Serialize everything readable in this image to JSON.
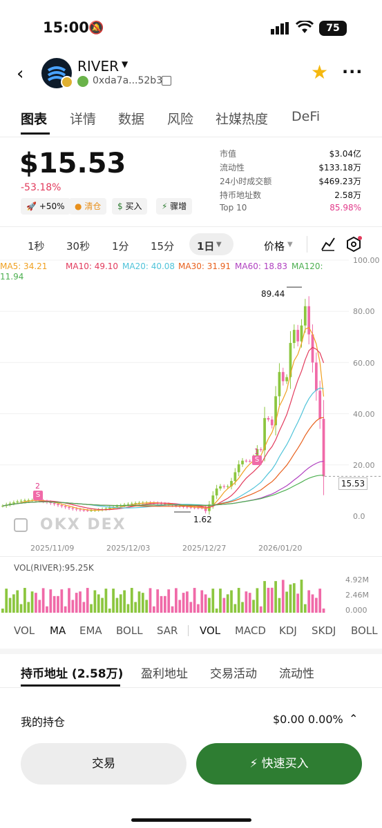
{
  "status": {
    "time": "15:00",
    "battery": "75"
  },
  "header": {
    "name": "RIVER",
    "address": "0xda7a...52b3"
  },
  "tabs": [
    "图表",
    "详情",
    "数据",
    "风险",
    "社媒热度",
    "DeFi"
  ],
  "price": {
    "value": "$15.53",
    "change": "-53.18%"
  },
  "chips": [
    "+50%",
    "清仓",
    "买入",
    "骤增"
  ],
  "stats": [
    {
      "label": "市值",
      "value": "$3.04亿"
    },
    {
      "label": "流动性",
      "value": "$133.18万"
    },
    {
      "label": "24小时成交额",
      "value": "$469.23万"
    },
    {
      "label": "持币地址数",
      "value": "2.58万"
    },
    {
      "label": "Top 10",
      "value": "85.98%"
    }
  ],
  "timeframes": [
    "1秒",
    "30秒",
    "1分",
    "15分",
    "1日"
  ],
  "price_selector": "价格",
  "ma": {
    "ma5": "MA5: 34.21",
    "ma10": "MA10: 49.10",
    "ma20": "MA20: 40.08",
    "ma30": "MA30: 31.91",
    "ma60": "MA60: 18.83",
    "ma120a": "MA120:",
    "ma120b": "11.94"
  },
  "chart_labels": {
    "high": "89.44",
    "low": "1.62",
    "current": "15.53",
    "marker1": "1",
    "marker2": "2",
    "vol_title": "VOL(RIVER):95.25K",
    "watermark": "OKX DEX"
  },
  "colors": {
    "up": "#8cc63f",
    "down": "#f06aa8",
    "ma5": "#f0a020",
    "ma10": "#e23a5c",
    "ma20": "#4fc3d9",
    "ma30": "#e8601c",
    "ma60": "#b040c0",
    "ma120": "#4caf50"
  },
  "chart_data": {
    "type": "line",
    "y_ticks": [
      "100.00",
      "80.00",
      "60.00",
      "40.00",
      "20.00",
      "0.0"
    ],
    "x_ticks": [
      "2025/11/09",
      "2025/12/03",
      "2025/12/27",
      "2026/01/20"
    ],
    "vol_ticks": [
      "4.92M",
      "2.46M",
      "0.000"
    ],
    "ylim": [
      0,
      100
    ],
    "high": 89.44,
    "low": 1.62,
    "last": 15.53
  },
  "indicators": [
    "VOL",
    "MA",
    "EMA",
    "BOLL",
    "SAR",
    "VOL",
    "MACD",
    "KDJ",
    "SKDJ",
    "BOLL"
  ],
  "bottom_tabs": [
    "持币地址 (2.58万)",
    "盈利地址",
    "交易活动",
    "流动性"
  ],
  "holdings": {
    "label": "我的持仓",
    "value": "$0.00 0.00%"
  },
  "buttons": {
    "trade": "交易",
    "quick_buy": "快速买入"
  }
}
